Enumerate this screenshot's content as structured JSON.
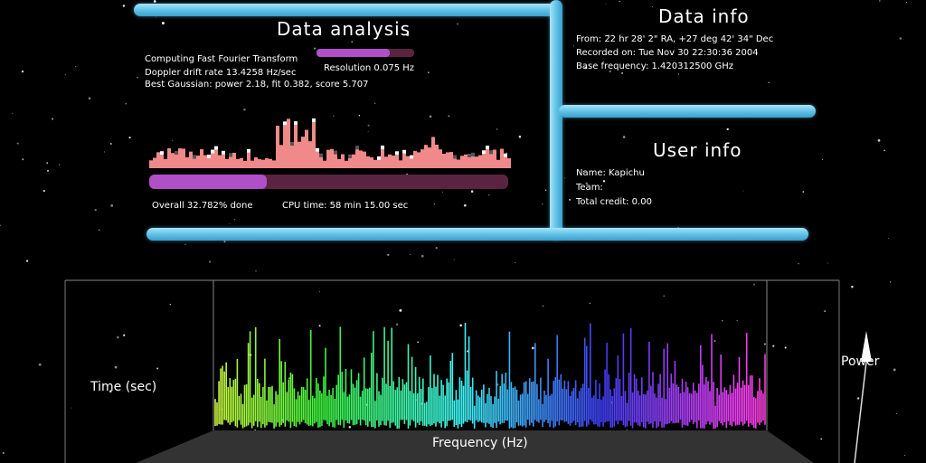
{
  "data_analysis": {
    "title": "Data analysis",
    "transform_label": "Computing Fast Fourier Transform",
    "transform_progress": 0.75,
    "doppler": "Doppler drift rate 13.4258 Hz/sec",
    "resolution": "Resolution 0.075 Hz",
    "gaussian": "Best Gaussian: power 2.18, fit 0.382, score 5.707",
    "overall_done": "Overall 32.782% done",
    "overall_progress": 0.32782,
    "cpu_time": "CPU time: 58 min 15.00 sec"
  },
  "data_info": {
    "title": "Data info",
    "from": "From: 22 hr 28' 2\" RA, +27 deg 42' 34\" Dec",
    "recorded": "Recorded on: Tue Nov 30 22:30:36 2004",
    "base_frequency": "Base frequency: 1.420312500 GHz"
  },
  "user_info": {
    "title": "User info",
    "name": "Name: Kapichu",
    "team": "Team:",
    "total_credit": "Total credit: 0.00"
  },
  "plot": {
    "time_label": "Time (sec)",
    "frequency_label": "Frequency (Hz)",
    "power_label": "Power"
  },
  "colors": {
    "pipe": "#5cbfe6",
    "progress_fill": "#b050c8",
    "progress_track": "#5a2440",
    "spectrum_bars": "#f08a8a"
  }
}
